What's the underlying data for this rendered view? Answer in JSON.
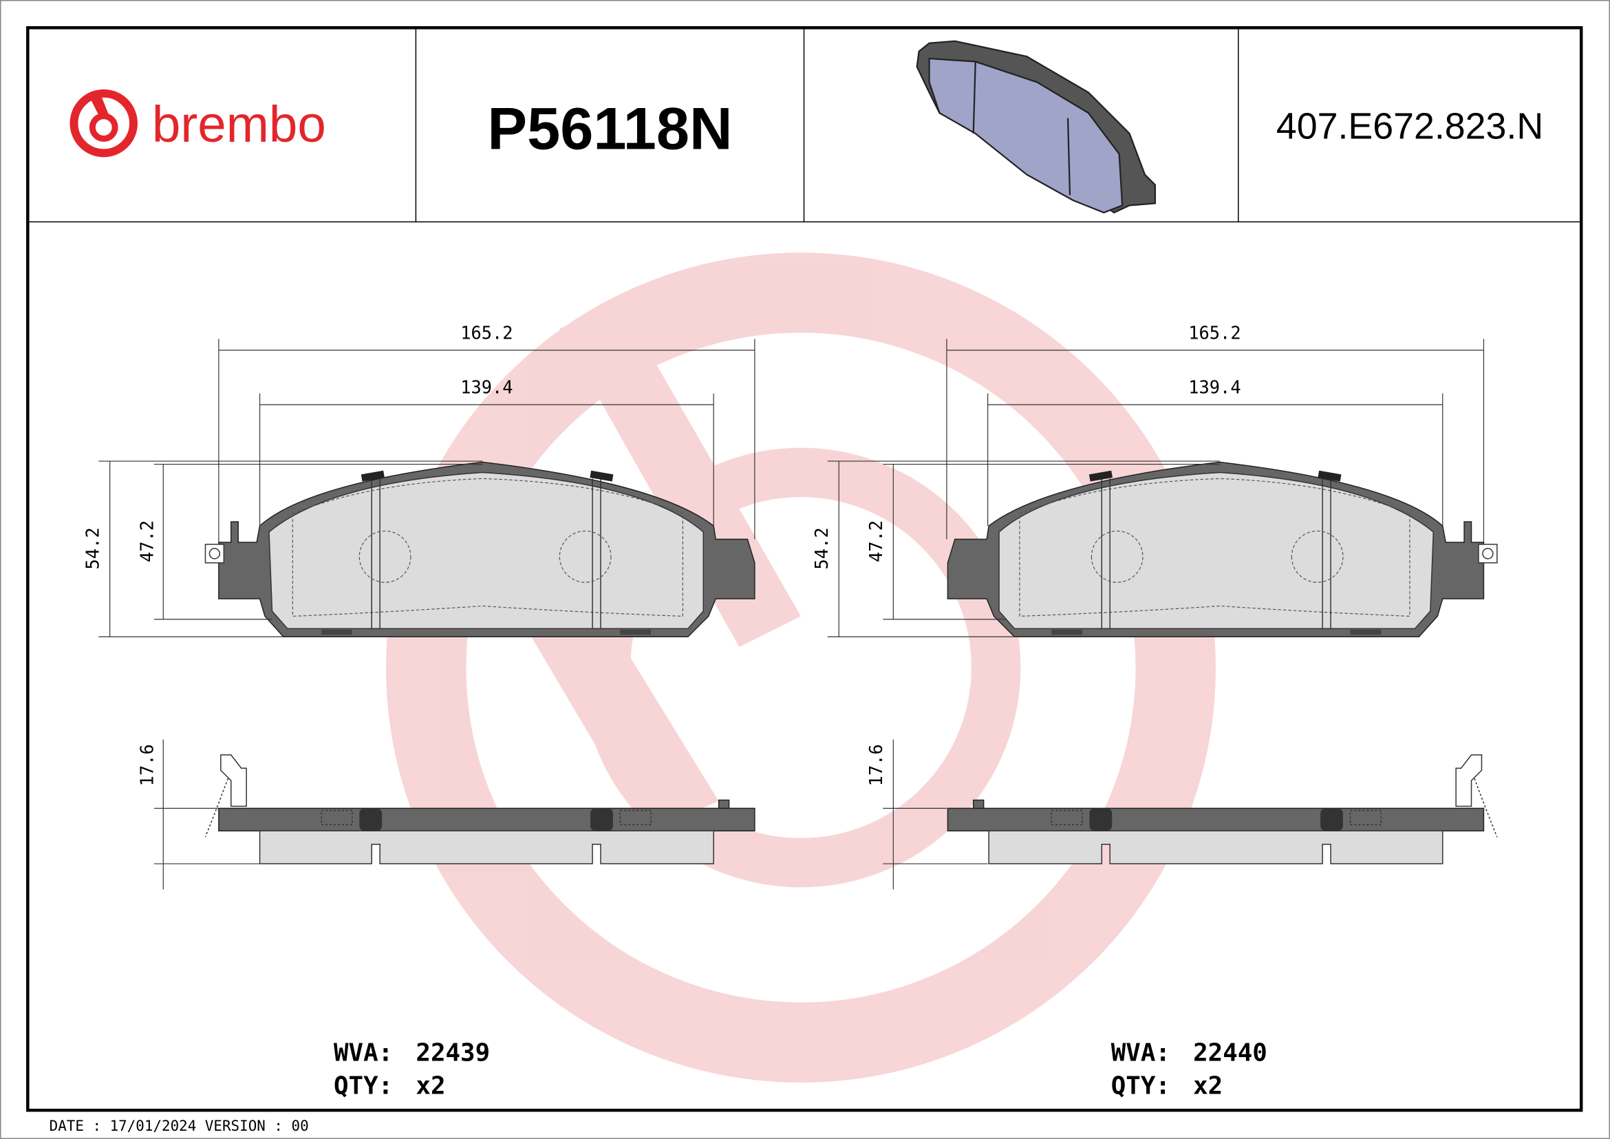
{
  "header": {
    "brand": "brembo",
    "part_number": "P56118N",
    "reference_code": "407.E672.823.N"
  },
  "left_pad": {
    "width_overall": "165.2",
    "width_inner": "139.4",
    "height_overall": "54.2",
    "height_inner": "47.2",
    "thickness": "17.6",
    "wva_label": "WVA:",
    "wva": "22439",
    "qty_label": "QTY:",
    "qty": "x2"
  },
  "right_pad": {
    "width_overall": "165.2",
    "width_inner": "139.4",
    "height_overall": "54.2",
    "height_inner": "47.2",
    "thickness": "17.6",
    "wva_label": "WVA:",
    "wva": "22440",
    "qty_label": "QTY:",
    "qty": "x2"
  },
  "footer": {
    "date_label": "DATE : 17/01/2024 VERSION : 00"
  },
  "colors": {
    "brand_red": "#e3262b",
    "watermark": "#f6c9cb",
    "backing_plate": "#666666",
    "friction_material": "#dcdcdc",
    "render_pad": "#a0a4c8"
  }
}
